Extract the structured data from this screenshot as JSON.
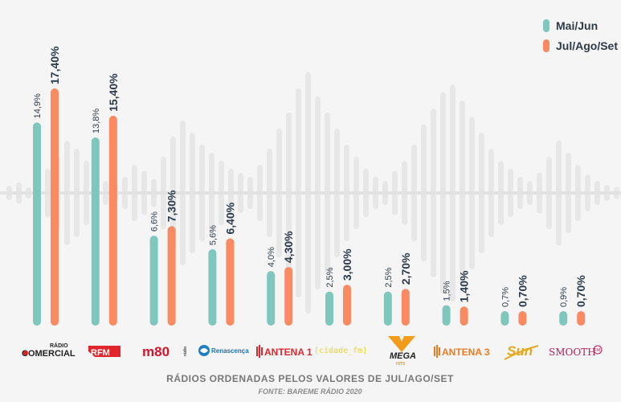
{
  "chart_data": {
    "type": "bar",
    "categories": [
      "RÁDIO COMERCIAL",
      "RFM",
      "M80",
      "Renascença",
      "ANTENA 1",
      "cidade_fm",
      "MEGA HITS",
      "ANTENA 3",
      "SUN",
      "SMOOTH FM"
    ],
    "series": [
      {
        "name": "Mai/Jun",
        "values": [
          14.9,
          13.8,
          6.6,
          5.6,
          4.0,
          2.5,
          2.5,
          1.5,
          0.7,
          0.9
        ],
        "labels": [
          "14,9%",
          "13,8%",
          "6,6%",
          "5,6%",
          "4,0%",
          "2,5%",
          "2,5%",
          "1,5%",
          "0,7%",
          "0,9%"
        ],
        "color": "#7fc6bd"
      },
      {
        "name": "Jul/Ago/Set",
        "values": [
          17.4,
          15.4,
          7.3,
          6.4,
          4.3,
          3.0,
          2.7,
          1.4,
          0.7,
          0.7
        ],
        "labels": [
          "17,40%",
          "15,40%",
          "7,30%",
          "6,40%",
          "4,30%",
          "3,00%",
          "2,70%",
          "1,40%",
          "0,70%",
          "0,70%"
        ],
        "color": "#f98a61"
      }
    ],
    "legend_position": "top-right",
    "grid": false
  },
  "legend": {
    "mai_jun": "Mai/Jun",
    "jul_ago_set": "Jul/Ago/Set"
  },
  "logos": {
    "comercial_top": "RÁDIO",
    "comercial_bottom": "COMERCIAL",
    "rfm": "RFM",
    "m80": "m80",
    "m80_small": "rádio",
    "renascenca": "Renascença",
    "antena1": "ANTENA 1",
    "cidade": "[cidade_fm]",
    "mega": "MEGA",
    "mega_small": "HITS",
    "antena3": "ANTENA 3",
    "sun": "Sun",
    "smooth": "SMOOTH",
    "smooth_badge": "FM"
  },
  "caption": {
    "title": "RÁDIOS ORDENADAS PELOS VALORES DE JUL/AGO/SET",
    "source": "FONTE: BAREME RÁDIO 2020"
  },
  "colors": {
    "background": "#f5f5f5",
    "mai_jun": "#7fc6bd",
    "jul_ago_set": "#f98a61",
    "label": "#2a3a4a"
  }
}
